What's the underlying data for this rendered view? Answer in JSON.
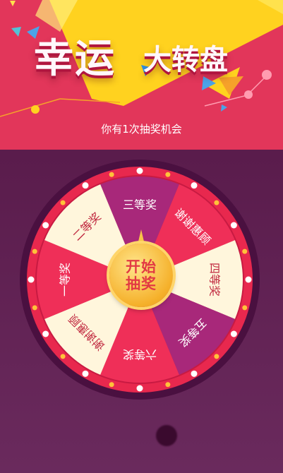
{
  "header": {
    "title_big": "幸运",
    "title_small": "大转盘",
    "remaining_text": "你有1次抽奖机会"
  },
  "wheel": {
    "segments": [
      {
        "label": "三等奖"
      },
      {
        "label": "谢谢惠顾"
      },
      {
        "label": "四等奖"
      },
      {
        "label": "五等奖"
      },
      {
        "label": "六等奖"
      },
      {
        "label": "谢谢惠顾"
      },
      {
        "label": "一等奖"
      },
      {
        "label": "二等奖"
      }
    ],
    "start_button": {
      "line1": "开始",
      "line2": "抽奖"
    }
  },
  "colors": {
    "header_bg": "#e2365a",
    "page_bg": "#5e2150",
    "ring": "#e8284e",
    "seg_cream": "#fff6dc",
    "seg_red": "#ef2f58",
    "seg_purple": "#a8287a",
    "button_gold": "#f5b02a"
  }
}
